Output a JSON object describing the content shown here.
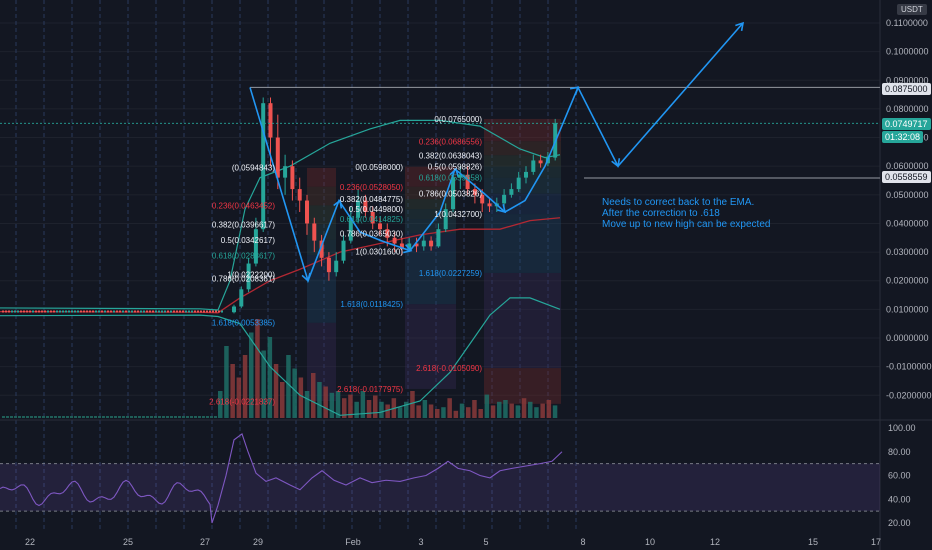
{
  "chart_data": [
    {
      "type": "candlestick",
      "symbol_unit": "USDT",
      "x_ticks": [
        "22",
        "25",
        "27",
        "29",
        "Feb",
        "3",
        "5",
        "8",
        "10",
        "12",
        "15",
        "17"
      ],
      "y_ticks": [
        "0.1100000",
        "0.1000000",
        "0.0900000",
        "0.0800000",
        "0.0700000",
        "0.0600000",
        "0.0500000",
        "0.0400000",
        "0.0300000",
        "0.0200000",
        "0.0100000",
        "0.0000000",
        "-0.0100000",
        "-0.0200000"
      ],
      "ylim": [
        -0.025,
        0.116
      ],
      "price_labels": [
        {
          "value": 0.0875,
          "label": "0.0875000",
          "style": "white"
        },
        {
          "value": 0.07497,
          "label": "0.0749717",
          "style": "green",
          "countdown": "01:32:08"
        },
        {
          "value": 0.05586,
          "label": "0.0558559",
          "style": "white"
        }
      ],
      "fib_retracements": [
        {
          "levels": [
            {
              "label": "0.236(0.0463452)",
              "value": 0.04635
            },
            {
              "label": "0.382(0.0396617)",
              "value": 0.03966
            },
            {
              "label": "0.5(0.0342617)",
              "value": 0.03426
            },
            {
              "label": "0.618(0.0288617)",
              "value": 0.02886
            },
            {
              "label": "0.786(0.0208361)",
              "value": 0.02084
            },
            {
              "label": "1(0.0222200)",
              "value": 0.02222
            },
            {
              "label": "1.618(0.0053385)",
              "value": 0.00534
            },
            {
              "label": "2.618(-0.0221837)",
              "value": -0.02218
            },
            {
              "label": "(0.0594843)",
              "value": 0.05948
            }
          ]
        },
        {
          "levels": [
            {
              "label": "0(0.0598000)",
              "value": 0.0598
            },
            {
              "label": "0.236(0.0528050)",
              "value": 0.0528
            },
            {
              "label": "0.382(0.0484775)",
              "value": 0.04848
            },
            {
              "label": "0.5(0.0449800)",
              "value": 0.04498
            },
            {
              "label": "0.618(0.0414825)",
              "value": 0.04148
            },
            {
              "label": "0.786(0.0365030)",
              "value": 0.0365
            },
            {
              "label": "1(0.0301600)",
              "value": 0.03016
            },
            {
              "label": "1.618(0.0118425)",
              "value": 0.01184
            },
            {
              "label": "2.618(-0.0177975)",
              "value": -0.0178
            }
          ]
        },
        {
          "levels": [
            {
              "label": "0(0.0765000)",
              "value": 0.0765
            },
            {
              "label": "0.236(0.0686556)",
              "value": 0.06866
            },
            {
              "label": "0.382(0.0638043)",
              "value": 0.0638
            },
            {
              "label": "0.5(0.0598826)",
              "value": 0.05988
            },
            {
              "label": "0.618(0.0559658)",
              "value": 0.05597
            },
            {
              "label": "0.786(0.0503826)",
              "value": 0.05038
            },
            {
              "label": "1(0.0432700)",
              "value": 0.04327
            },
            {
              "label": "1.618(0.0227259)",
              "value": 0.02273
            },
            {
              "label": "2.618(-0.0105090)",
              "value": -0.01051
            }
          ]
        }
      ],
      "annotation_lines": [
        "Needs to correct back to the EMA.",
        "After the correction to .618",
        "Move up to new high can be expected"
      ]
    },
    {
      "type": "line",
      "indicator": "RSI",
      "y_ticks": [
        "100.00",
        "80.00",
        "60.00",
        "40.00",
        "20.00"
      ],
      "ylim": [
        15,
        105
      ],
      "band": [
        30,
        70
      ]
    }
  ],
  "colors": {
    "background": "#131722",
    "up": "#26a69a",
    "down": "#ef5350",
    "bollinger": "#26a69a",
    "ema": "#b22833",
    "annotation": "#2196f3",
    "rsi": "#7e57c2"
  }
}
